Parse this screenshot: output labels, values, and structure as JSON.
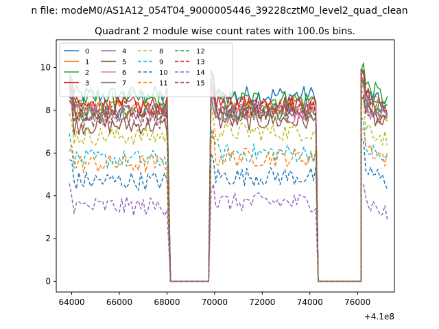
{
  "chart_data": {
    "type": "line",
    "suptitle": "n file: modeM0/AS1A12_054T04_9000005446_39228cztM0_level2_quad_clean",
    "title": "Quadrant 2 module wise count rates with 100.0s bins.",
    "xlabel": "",
    "ylabel": "",
    "x_offset_label": "+4.1e8",
    "xlim": [
      63350,
      77550
    ],
    "ylim": [
      -0.5,
      11.3
    ],
    "xticks": [
      64000,
      66000,
      68000,
      70000,
      72000,
      74000,
      76000
    ],
    "xtick_labels": [
      "64000",
      "66000",
      "68000",
      "70000",
      "72000",
      "74000",
      "76000"
    ],
    "yticks": [
      0,
      2,
      4,
      6,
      8,
      10
    ],
    "ytick_labels": [
      "0",
      "2",
      "4",
      "6",
      "8",
      "10"
    ],
    "grid": false,
    "legend_position": "top-left",
    "legend_columns": 4,
    "segments": [
      {
        "start": 63900,
        "end": 68050
      },
      {
        "start": 69850,
        "end": 74250
      },
      {
        "start": 76150,
        "end": 77250
      }
    ],
    "gaps": [
      {
        "start": 68150,
        "end": 69850,
        "value": 0
      },
      {
        "start": 74350,
        "end": 76150,
        "value": 0
      }
    ],
    "series": [
      {
        "name": "0",
        "color": "#1f77b4",
        "style": "solid",
        "levels": [
          8.7,
          8.7,
          8.9
        ]
      },
      {
        "name": "1",
        "color": "#ff7f0e",
        "style": "solid",
        "levels": [
          8.1,
          8.1,
          8.4
        ]
      },
      {
        "name": "2",
        "color": "#2ca02c",
        "style": "solid",
        "levels": [
          8.5,
          8.5,
          9.3
        ]
      },
      {
        "name": "3",
        "color": "#d62728",
        "style": "solid",
        "levels": [
          8.2,
          8.3,
          9.0
        ]
      },
      {
        "name": "4",
        "color": "#9467bd",
        "style": "solid",
        "levels": [
          7.9,
          8.0,
          8.5
        ]
      },
      {
        "name": "5",
        "color": "#8c564b",
        "style": "solid",
        "levels": [
          7.3,
          7.5,
          8.0
        ]
      },
      {
        "name": "6",
        "color": "#e377c2",
        "style": "solid",
        "levels": [
          7.7,
          7.8,
          8.3
        ]
      },
      {
        "name": "7",
        "color": "#7f7f7f",
        "style": "solid",
        "levels": [
          8.0,
          8.0,
          8.6
        ]
      },
      {
        "name": "8",
        "color": "#bcbd22",
        "style": "dashed",
        "levels": [
          6.8,
          7.0,
          7.4
        ]
      },
      {
        "name": "9",
        "color": "#17becf",
        "style": "dashed",
        "levels": [
          5.7,
          6.0,
          6.4
        ]
      },
      {
        "name": "10",
        "color": "#1f77b4",
        "style": "dashed",
        "levels": [
          4.7,
          4.9,
          5.4
        ]
      },
      {
        "name": "11",
        "color": "#ff7f0e",
        "style": "dashed",
        "levels": [
          5.5,
          5.8,
          6.5
        ]
      },
      {
        "name": "12",
        "color": "#2ca02c",
        "style": "dashed",
        "levels": [
          7.9,
          8.0,
          8.7
        ]
      },
      {
        "name": "13",
        "color": "#d62728",
        "style": "dashed",
        "levels": [
          8.0,
          8.2,
          8.8
        ]
      },
      {
        "name": "14",
        "color": "#9467bd",
        "style": "dashed",
        "levels": [
          3.5,
          3.7,
          3.9
        ]
      },
      {
        "name": "15",
        "color": "#8c564b",
        "style": "dashed",
        "levels": [
          7.6,
          7.9,
          8.3
        ]
      }
    ]
  }
}
